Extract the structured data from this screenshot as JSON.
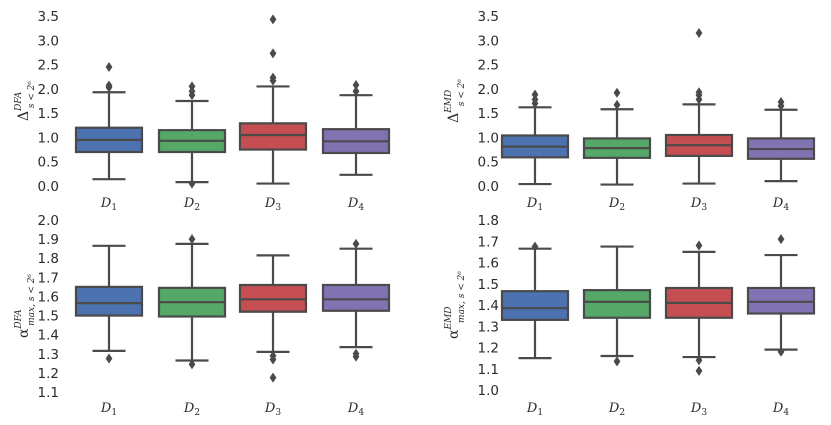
{
  "colors": {
    "D1": "#4c72b0",
    "D2": "#55a868",
    "D3": "#c44e52",
    "D4": "#8172b2",
    "edge": "#4a4a4a"
  },
  "chart_data": [
    {
      "type": "box",
      "ylabel": "Δ",
      "ylabel_super": "DFA",
      "ylabel_sub": "s < 2⁶",
      "ylim": [
        0.0,
        3.5
      ],
      "yticks": [
        "0.0",
        "0.5",
        "1.0",
        "1.5",
        "2.0",
        "2.5",
        "3.0",
        "3.5"
      ],
      "categories": [
        {
          "label": "D",
          "sub": "1",
          "series": "D1",
          "whisker_low": 0.14,
          "q1": 0.7,
          "median": 0.95,
          "q3": 1.2,
          "whisker_high": 1.93,
          "outliers": [
            2.03,
            2.07,
            2.45
          ]
        },
        {
          "label": "D",
          "sub": "2",
          "series": "D2",
          "whisker_low": 0.08,
          "q1": 0.7,
          "median": 0.93,
          "q3": 1.15,
          "whisker_high": 1.75,
          "outliers": [
            0.05,
            1.87,
            1.95,
            2.05
          ]
        },
        {
          "label": "D",
          "sub": "3",
          "series": "D3",
          "whisker_low": 0.05,
          "q1": 0.75,
          "median": 1.05,
          "q3": 1.29,
          "whisker_high": 2.05,
          "outliers": [
            2.17,
            2.23,
            2.73,
            3.43
          ]
        },
        {
          "label": "D",
          "sub": "4",
          "series": "D4",
          "whisker_low": 0.23,
          "q1": 0.68,
          "median": 0.92,
          "q3": 1.17,
          "whisker_high": 1.87,
          "outliers": [
            1.95,
            2.08
          ]
        }
      ]
    },
    {
      "type": "box",
      "ylabel": "Δ",
      "ylabel_super": "EMD",
      "ylabel_sub": "s < 2⁶",
      "ylim": [
        0.0,
        3.5
      ],
      "yticks": [
        "0.0",
        "0.5",
        "1.0",
        "1.5",
        "2.0",
        "2.5",
        "3.0",
        "3.5"
      ],
      "categories": [
        {
          "label": "D",
          "sub": "1",
          "series": "D1",
          "whisker_low": 0.04,
          "q1": 0.59,
          "median": 0.81,
          "q3": 1.04,
          "whisker_high": 1.62,
          "outliers": [
            1.7,
            1.78,
            1.88
          ]
        },
        {
          "label": "D",
          "sub": "2",
          "series": "D2",
          "whisker_low": 0.03,
          "q1": 0.58,
          "median": 0.78,
          "q3": 0.98,
          "whisker_high": 1.58,
          "outliers": [
            1.67,
            1.92
          ]
        },
        {
          "label": "D",
          "sub": "3",
          "series": "D3",
          "whisker_low": 0.05,
          "q1": 0.62,
          "median": 0.84,
          "q3": 1.05,
          "whisker_high": 1.68,
          "outliers": [
            1.78,
            1.87,
            1.93,
            3.15
          ]
        },
        {
          "label": "D",
          "sub": "4",
          "series": "D4",
          "whisker_low": 0.1,
          "q1": 0.56,
          "median": 0.76,
          "q3": 0.98,
          "whisker_high": 1.57,
          "outliers": [
            1.65,
            1.73
          ]
        }
      ]
    },
    {
      "type": "box",
      "ylabel": "α",
      "ylabel_super": "DFA",
      "ylabel_sub": "max, s < 2⁶",
      "ylim": [
        1.1,
        2.0
      ],
      "yticks": [
        "1.1",
        "1.2",
        "1.3",
        "1.4",
        "1.5",
        "1.6",
        "1.7",
        "1.8",
        "1.9",
        "2.0"
      ],
      "categories": [
        {
          "label": "D",
          "sub": "1",
          "series": "D1",
          "whisker_low": 1.315,
          "q1": 1.5,
          "median": 1.565,
          "q3": 1.65,
          "whisker_high": 1.865,
          "outliers": [
            1.275
          ]
        },
        {
          "label": "D",
          "sub": "2",
          "series": "D2",
          "whisker_low": 1.265,
          "q1": 1.495,
          "median": 1.57,
          "q3": 1.645,
          "whisker_high": 1.875,
          "outliers": [
            1.245,
            1.9
          ]
        },
        {
          "label": "D",
          "sub": "3",
          "series": "D3",
          "whisker_low": 1.31,
          "q1": 1.52,
          "median": 1.585,
          "q3": 1.66,
          "whisker_high": 1.815,
          "outliers": [
            1.175,
            1.27,
            1.29
          ]
        },
        {
          "label": "D",
          "sub": "4",
          "series": "D4",
          "whisker_low": 1.335,
          "q1": 1.525,
          "median": 1.585,
          "q3": 1.66,
          "whisker_high": 1.85,
          "outliers": [
            1.285,
            1.3,
            1.875
          ]
        }
      ]
    },
    {
      "type": "box",
      "ylabel": "α",
      "ylabel_super": "EMD",
      "ylabel_sub": "max, s < 2⁶",
      "ylim": [
        1.0,
        1.8
      ],
      "yticks": [
        "1.0",
        "1.1",
        "1.2",
        "1.3",
        "1.4",
        "1.5",
        "1.6",
        "1.7",
        "1.8"
      ],
      "categories": [
        {
          "label": "D",
          "sub": "1",
          "series": "D1",
          "whisker_low": 1.15,
          "q1": 1.33,
          "median": 1.385,
          "q3": 1.465,
          "whisker_high": 1.665,
          "outliers": [
            1.675
          ]
        },
        {
          "label": "D",
          "sub": "2",
          "series": "D2",
          "whisker_low": 1.16,
          "q1": 1.34,
          "median": 1.415,
          "q3": 1.47,
          "whisker_high": 1.675,
          "outliers": [
            1.135
          ]
        },
        {
          "label": "D",
          "sub": "3",
          "series": "D3",
          "whisker_low": 1.155,
          "q1": 1.34,
          "median": 1.41,
          "q3": 1.48,
          "whisker_high": 1.65,
          "outliers": [
            1.09,
            1.14,
            1.68
          ]
        },
        {
          "label": "D",
          "sub": "4",
          "series": "D4",
          "whisker_low": 1.19,
          "q1": 1.36,
          "median": 1.415,
          "q3": 1.48,
          "whisker_high": 1.635,
          "outliers": [
            1.18,
            1.71
          ]
        }
      ]
    }
  ]
}
